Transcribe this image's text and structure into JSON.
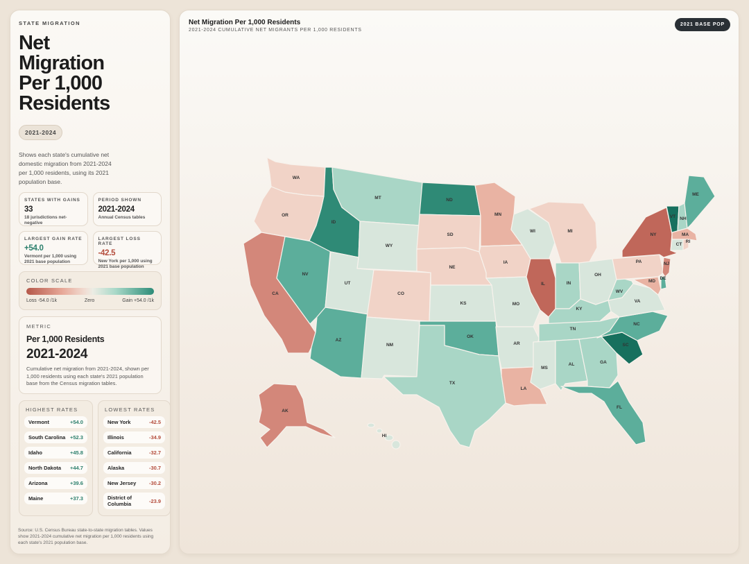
{
  "sidebar": {
    "eyebrow": "STATE MIGRATION",
    "title": "Net Migration Per 1,000 Residents",
    "period_pill": "2021-2024",
    "description": "Shows each state's cumulative net domestic migration from 2021-2024 per 1,000 residents, using its 2021 population base.",
    "cards": [
      {
        "label": "STATES WITH GAINS",
        "value": "33",
        "sub": "18 jurisdictions net-negative",
        "tone": "neutral"
      },
      {
        "label": "PERIOD SHOWN",
        "value": "2021-2024",
        "sub": "Annual Census tables",
        "tone": "neutral"
      },
      {
        "label": "LARGEST GAIN RATE",
        "value": "+54.0",
        "sub": "Vermont per 1,000 using 2021 base population",
        "tone": "pos"
      },
      {
        "label": "LARGEST LOSS RATE",
        "value": "-42.5",
        "sub": "New York per 1,000 using 2021 base population",
        "tone": "neg"
      }
    ],
    "scale": {
      "label": "COLOR SCALE",
      "low": "Loss -54.0 /1k",
      "mid": "Zero",
      "high": "Gain +54.0 /1k"
    },
    "metric": {
      "label": "METRIC",
      "name": "Per 1,000 Residents",
      "period": "2021-2024",
      "description": "Cumulative net migration from 2021-2024, shown per 1,000 residents using each state's 2021 population base from the Census migration tables."
    },
    "highest": {
      "label": "HIGHEST RATES",
      "rows": [
        {
          "name": "Vermont",
          "value": "+54.0"
        },
        {
          "name": "South Carolina",
          "value": "+52.3"
        },
        {
          "name": "Idaho",
          "value": "+45.8"
        },
        {
          "name": "North Dakota",
          "value": "+44.7"
        },
        {
          "name": "Arizona",
          "value": "+39.6"
        },
        {
          "name": "Maine",
          "value": "+37.3"
        }
      ]
    },
    "lowest": {
      "label": "LOWEST RATES",
      "rows": [
        {
          "name": "New York",
          "value": "-42.5"
        },
        {
          "name": "Illinois",
          "value": "-34.9"
        },
        {
          "name": "California",
          "value": "-32.7"
        },
        {
          "name": "Alaska",
          "value": "-30.7"
        },
        {
          "name": "New Jersey",
          "value": "-30.2"
        },
        {
          "name": "District of Columbia",
          "value": "-23.9"
        }
      ]
    },
    "source": "Source: U.S. Census Bureau state-to-state migration tables. Values show 2021-2024 cumulative net migration per 1,000 residents using each state's 2021 population base."
  },
  "map": {
    "title": "Net Migration Per 1,000 Residents",
    "subtitle": "2021-2024 CUMULATIVE NET MIGRANTS PER 1,000 RESIDENTS",
    "badge": "2021 BASE POP",
    "colors": {
      "strong_loss": "#c0675a",
      "loss": "#d3877a",
      "mild_loss": "#e9b3a3",
      "slight_loss": "#f1d3c7",
      "neutral": "#d8e6dc",
      "slight_gain": "#a9d6c6",
      "gain": "#5cae9b",
      "strong_gain": "#2f8a76",
      "max_gain": "#17705e"
    }
  }
}
